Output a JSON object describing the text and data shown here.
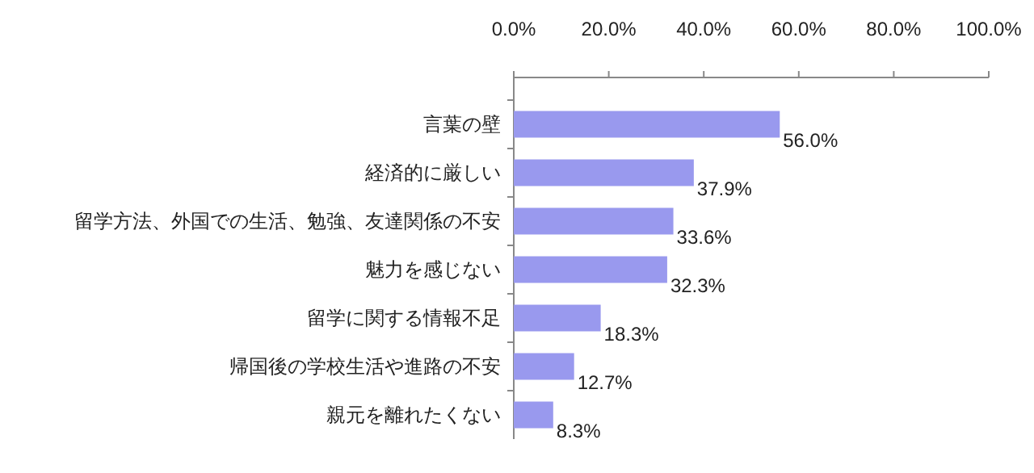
{
  "chart_data": {
    "type": "bar",
    "orientation": "horizontal",
    "categories": [
      "言葉の壁",
      "経済的に厳しい",
      "留学方法、外国での生活、勉強、友達関係の不安",
      "魅力を感じない",
      "留学に関する情報不足",
      "帰国後の学校生活や進路の不安",
      "親元を離れたくない"
    ],
    "values": [
      56.0,
      37.9,
      33.6,
      32.3,
      18.3,
      12.7,
      8.3
    ],
    "value_labels": [
      "56.0%",
      "37.9%",
      "33.6%",
      "32.3%",
      "18.3%",
      "12.7%",
      "8.3%"
    ],
    "color": "#9999ee",
    "xlim": [
      0,
      100
    ],
    "xticks": [
      {
        "value": 0,
        "label": "0.0%"
      },
      {
        "value": 20,
        "label": "20.0%"
      },
      {
        "value": 40,
        "label": "40.0%"
      },
      {
        "value": 60,
        "label": "60.0%"
      },
      {
        "value": 80,
        "label": "80.0%"
      },
      {
        "value": 100,
        "label": "100.0%"
      }
    ]
  }
}
